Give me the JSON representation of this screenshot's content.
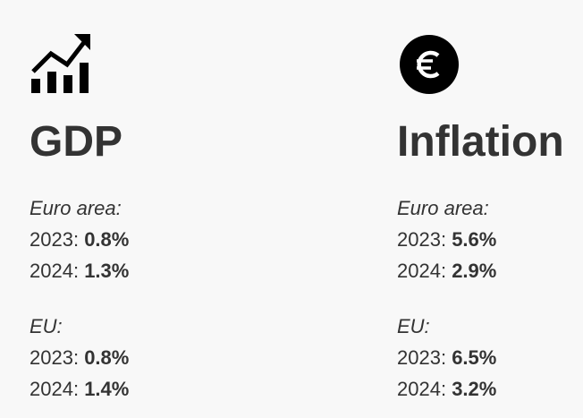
{
  "panels": [
    {
      "title": "GDP",
      "groups": [
        {
          "region": "Euro area:",
          "rows": [
            {
              "label": "2023:",
              "value": "0.8%"
            },
            {
              "label": "2024:",
              "value": "1.3%"
            }
          ]
        },
        {
          "region": "EU:",
          "rows": [
            {
              "label": "2023:",
              "value": "0.8%"
            },
            {
              "label": "2024:",
              "value": "1.4%"
            }
          ]
        }
      ]
    },
    {
      "title": "Inflation",
      "groups": [
        {
          "region": "Euro area:",
          "rows": [
            {
              "label": "2023:",
              "value": "5.6%"
            },
            {
              "label": "2024:",
              "value": "2.9%"
            }
          ]
        },
        {
          "region": "EU:",
          "rows": [
            {
              "label": "2023:",
              "value": "6.5%"
            },
            {
              "label": "2024:",
              "value": "3.2%"
            }
          ]
        }
      ]
    }
  ]
}
